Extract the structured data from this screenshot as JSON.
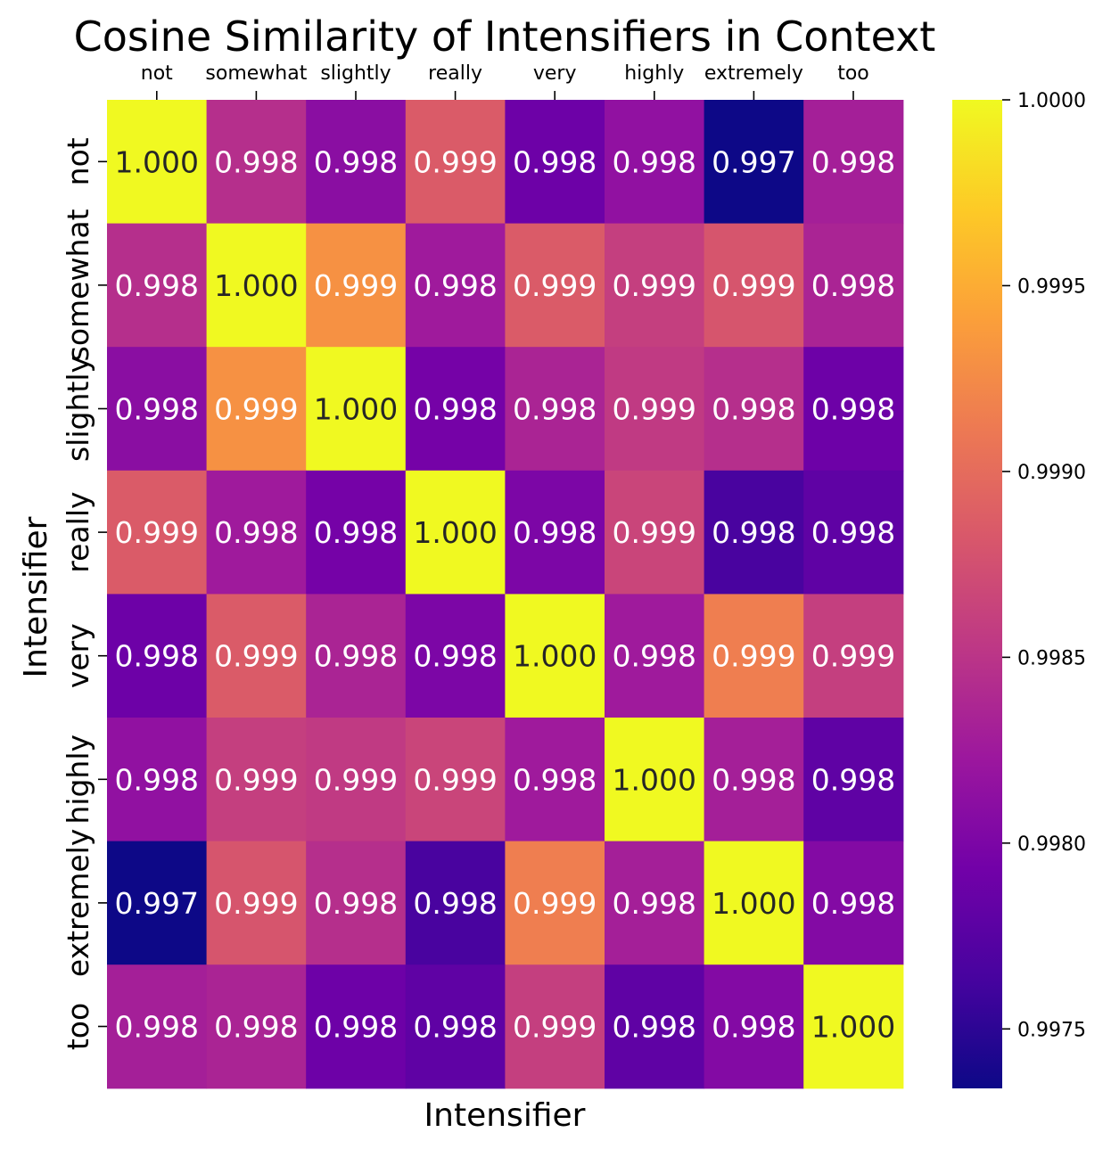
{
  "chart_data": {
    "type": "heatmap",
    "title": "Cosine Similarity of Intensifiers in Context",
    "xlabel": "Intensifier",
    "ylabel": "Intensifier",
    "x_tick_position": "top",
    "x_categories": [
      "not",
      "somewhat",
      "slightly",
      "really",
      "very",
      "highly",
      "extremely",
      "too"
    ],
    "y_categories": [
      "not",
      "somewhat",
      "slightly",
      "really",
      "very",
      "highly",
      "extremely",
      "too"
    ],
    "colormap": "plasma",
    "color_range": [
      0.99734,
      1.0
    ],
    "colorbar_ticks": [
      "1.0000",
      "0.9995",
      "0.9990",
      "0.9985",
      "0.9980",
      "0.9975"
    ],
    "colorbar_tick_values": [
      1.0,
      0.9995,
      0.999,
      0.9985,
      0.998,
      0.9975
    ],
    "values": [
      [
        1.0,
        0.99845,
        0.9981,
        0.99885,
        0.9979,
        0.99815,
        0.99734,
        0.9983
      ],
      [
        0.99845,
        1.0,
        0.9993,
        0.99825,
        0.99885,
        0.9986,
        0.9988,
        0.99835
      ],
      [
        0.9981,
        0.9993,
        1.0,
        0.99795,
        0.99835,
        0.99855,
        0.99845,
        0.9979
      ],
      [
        0.99885,
        0.99825,
        0.99795,
        1.0,
        0.998,
        0.99865,
        0.99765,
        0.9978
      ],
      [
        0.9979,
        0.99885,
        0.99835,
        0.998,
        1.0,
        0.99825,
        0.99915,
        0.9986
      ],
      [
        0.99815,
        0.9986,
        0.99855,
        0.99865,
        0.99825,
        1.0,
        0.9983,
        0.9978
      ],
      [
        0.99734,
        0.9988,
        0.99845,
        0.99765,
        0.99915,
        0.9983,
        1.0,
        0.99805
      ],
      [
        0.9983,
        0.99835,
        0.9979,
        0.9978,
        0.9986,
        0.9978,
        0.99805,
        1.0
      ]
    ],
    "annotations": [
      [
        "1.000",
        "0.998",
        "0.998",
        "0.999",
        "0.998",
        "0.998",
        "0.997",
        "0.998"
      ],
      [
        "0.998",
        "1.000",
        "0.999",
        "0.998",
        "0.999",
        "0.999",
        "0.999",
        "0.998"
      ],
      [
        "0.998",
        "0.999",
        "1.000",
        "0.998",
        "0.998",
        "0.999",
        "0.998",
        "0.998"
      ],
      [
        "0.999",
        "0.998",
        "0.998",
        "1.000",
        "0.998",
        "0.999",
        "0.998",
        "0.998"
      ],
      [
        "0.998",
        "0.999",
        "0.998",
        "0.998",
        "1.000",
        "0.998",
        "0.999",
        "0.999"
      ],
      [
        "0.998",
        "0.999",
        "0.999",
        "0.999",
        "0.998",
        "1.000",
        "0.998",
        "0.998"
      ],
      [
        "0.997",
        "0.999",
        "0.998",
        "0.998",
        "0.999",
        "0.998",
        "1.000",
        "0.998"
      ],
      [
        "0.998",
        "0.998",
        "0.998",
        "0.998",
        "0.999",
        "0.998",
        "0.998",
        "1.000"
      ]
    ]
  }
}
